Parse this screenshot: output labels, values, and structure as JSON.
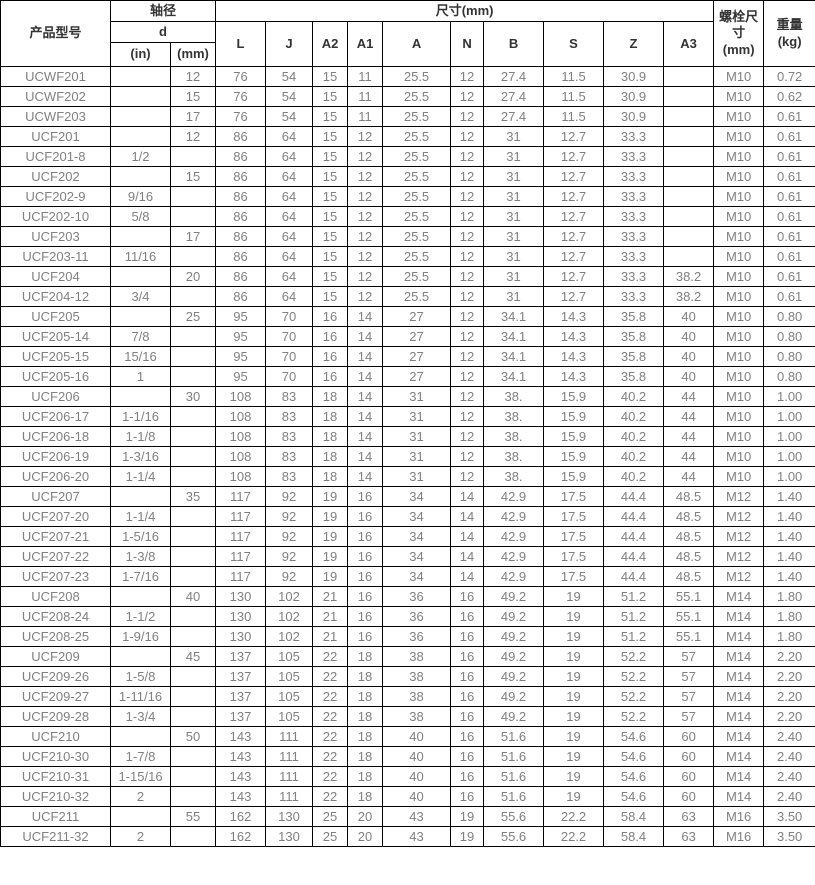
{
  "table": {
    "header": {
      "product_model": "产品型号",
      "shaft_diameter": "轴径",
      "d": "d",
      "unit_in": "(in)",
      "unit_mm": "(mm)",
      "size_mm": "尺寸(mm)",
      "dims": [
        "L",
        "J",
        "A2",
        "A1",
        "A",
        "N",
        "B",
        "S",
        "Z",
        "A3"
      ],
      "bolt_size": "螺栓尺寸 (mm)",
      "weight": "重量 (kg)"
    },
    "columns": [
      "model",
      "in",
      "mm",
      "L",
      "J",
      "A2",
      "A1",
      "A",
      "N",
      "B",
      "S",
      "Z",
      "A3",
      "bolt",
      "weight"
    ],
    "rows": [
      [
        "UCWF201",
        "",
        "12",
        "76",
        "54",
        "15",
        "11",
        "25.5",
        "12",
        "27.4",
        "11.5",
        "30.9",
        "",
        "M10",
        "0.72"
      ],
      [
        "UCWF202",
        "",
        "15",
        "76",
        "54",
        "15",
        "11",
        "25.5",
        "12",
        "27.4",
        "11.5",
        "30.9",
        "",
        "M10",
        "0.62"
      ],
      [
        "UCWF203",
        "",
        "17",
        "76",
        "54",
        "15",
        "11",
        "25.5",
        "12",
        "27.4",
        "11.5",
        "30.9",
        "",
        "M10",
        "0.61"
      ],
      [
        "UCF201",
        "",
        "12",
        "86",
        "64",
        "15",
        "12",
        "25.5",
        "12",
        "31",
        "12.7",
        "33.3",
        "",
        "M10",
        "0.61"
      ],
      [
        "UCF201-8",
        "1/2",
        "",
        "86",
        "64",
        "15",
        "12",
        "25.5",
        "12",
        "31",
        "12.7",
        "33.3",
        "",
        "M10",
        "0.61"
      ],
      [
        "UCF202",
        "",
        "15",
        "86",
        "64",
        "15",
        "12",
        "25.5",
        "12",
        "31",
        "12.7",
        "33.3",
        "",
        "M10",
        "0.61"
      ],
      [
        "UCF202-9",
        "9/16",
        "",
        "86",
        "64",
        "15",
        "12",
        "25.5",
        "12",
        "31",
        "12.7",
        "33.3",
        "",
        "M10",
        "0.61"
      ],
      [
        "UCF202-10",
        "5/8",
        "",
        "86",
        "64",
        "15",
        "12",
        "25.5",
        "12",
        "31",
        "12.7",
        "33.3",
        "",
        "M10",
        "0.61"
      ],
      [
        "UCF203",
        "",
        "17",
        "86",
        "64",
        "15",
        "12",
        "25.5",
        "12",
        "31",
        "12.7",
        "33.3",
        "",
        "M10",
        "0.61"
      ],
      [
        "UCF203-11",
        "11/16",
        "",
        "86",
        "64",
        "15",
        "12",
        "25.5",
        "12",
        "31",
        "12.7",
        "33.3",
        "",
        "M10",
        "0.61"
      ],
      [
        "UCF204",
        "",
        "20",
        "86",
        "64",
        "15",
        "12",
        "25.5",
        "12",
        "31",
        "12.7",
        "33.3",
        "38.2",
        "M10",
        "0.61"
      ],
      [
        "UCF204-12",
        "3/4",
        "",
        "86",
        "64",
        "15",
        "12",
        "25.5",
        "12",
        "31",
        "12.7",
        "33.3",
        "38.2",
        "M10",
        "0.61"
      ],
      [
        "UCF205",
        "",
        "25",
        "95",
        "70",
        "16",
        "14",
        "27",
        "12",
        "34.1",
        "14.3",
        "35.8",
        "40",
        "M10",
        "0.80"
      ],
      [
        "UCF205-14",
        "7/8",
        "",
        "95",
        "70",
        "16",
        "14",
        "27",
        "12",
        "34.1",
        "14.3",
        "35.8",
        "40",
        "M10",
        "0.80"
      ],
      [
        "UCF205-15",
        "15/16",
        "",
        "95",
        "70",
        "16",
        "14",
        "27",
        "12",
        "34.1",
        "14.3",
        "35.8",
        "40",
        "M10",
        "0.80"
      ],
      [
        "UCF205-16",
        "1",
        "",
        "95",
        "70",
        "16",
        "14",
        "27",
        "12",
        "34.1",
        "14.3",
        "35.8",
        "40",
        "M10",
        "0.80"
      ],
      [
        "UCF206",
        "",
        "30",
        "108",
        "83",
        "18",
        "14",
        "31",
        "12",
        "38.",
        "15.9",
        "40.2",
        "44",
        "M10",
        "1.00"
      ],
      [
        "UCF206-17",
        "1-1/16",
        "",
        "108",
        "83",
        "18",
        "14",
        "31",
        "12",
        "38.",
        "15.9",
        "40.2",
        "44",
        "M10",
        "1.00"
      ],
      [
        "UCF206-18",
        "1-1/8",
        "",
        "108",
        "83",
        "18",
        "14",
        "31",
        "12",
        "38.",
        "15.9",
        "40.2",
        "44",
        "M10",
        "1.00"
      ],
      [
        "UCF206-19",
        "1-3/16",
        "",
        "108",
        "83",
        "18",
        "14",
        "31",
        "12",
        "38.",
        "15.9",
        "40.2",
        "44",
        "M10",
        "1.00"
      ],
      [
        "UCF206-20",
        "1-1/4",
        "",
        "108",
        "83",
        "18",
        "14",
        "31",
        "12",
        "38.",
        "15.9",
        "40.2",
        "44",
        "M10",
        "1.00"
      ],
      [
        "UCF207",
        "",
        "35",
        "117",
        "92",
        "19",
        "16",
        "34",
        "14",
        "42.9",
        "17.5",
        "44.4",
        "48.5",
        "M12",
        "1.40"
      ],
      [
        "UCF207-20",
        "1-1/4",
        "",
        "117",
        "92",
        "19",
        "16",
        "34",
        "14",
        "42.9",
        "17.5",
        "44.4",
        "48.5",
        "M12",
        "1.40"
      ],
      [
        "UCF207-21",
        "1-5/16",
        "",
        "117",
        "92",
        "19",
        "16",
        "34",
        "14",
        "42.9",
        "17.5",
        "44.4",
        "48.5",
        "M12",
        "1.40"
      ],
      [
        "UCF207-22",
        "1-3/8",
        "",
        "117",
        "92",
        "19",
        "16",
        "34",
        "14",
        "42.9",
        "17.5",
        "44.4",
        "48.5",
        "M12",
        "1.40"
      ],
      [
        "UCF207-23",
        "1-7/16",
        "",
        "117",
        "92",
        "19",
        "16",
        "34",
        "14",
        "42.9",
        "17.5",
        "44.4",
        "48.5",
        "M12",
        "1.40"
      ],
      [
        "UCF208",
        "",
        "40",
        "130",
        "102",
        "21",
        "16",
        "36",
        "16",
        "49.2",
        "19",
        "51.2",
        "55.1",
        "M14",
        "1.80"
      ],
      [
        "UCF208-24",
        "1-1/2",
        "",
        "130",
        "102",
        "21",
        "16",
        "36",
        "16",
        "49.2",
        "19",
        "51.2",
        "55.1",
        "M14",
        "1.80"
      ],
      [
        "UCF208-25",
        "1-9/16",
        "",
        "130",
        "102",
        "21",
        "16",
        "36",
        "16",
        "49.2",
        "19",
        "51.2",
        "55.1",
        "M14",
        "1.80"
      ],
      [
        "UCF209",
        "",
        "45",
        "137",
        "105",
        "22",
        "18",
        "38",
        "16",
        "49.2",
        "19",
        "52.2",
        "57",
        "M14",
        "2.20"
      ],
      [
        "UCF209-26",
        "1-5/8",
        "",
        "137",
        "105",
        "22",
        "18",
        "38",
        "16",
        "49.2",
        "19",
        "52.2",
        "57",
        "M14",
        "2.20"
      ],
      [
        "UCF209-27",
        "1-11/16",
        "",
        "137",
        "105",
        "22",
        "18",
        "38",
        "16",
        "49.2",
        "19",
        "52.2",
        "57",
        "M14",
        "2.20"
      ],
      [
        "UCF209-28",
        "1-3/4",
        "",
        "137",
        "105",
        "22",
        "18",
        "38",
        "16",
        "49.2",
        "19",
        "52.2",
        "57",
        "M14",
        "2.20"
      ],
      [
        "UCF210",
        "",
        "50",
        "143",
        "111",
        "22",
        "18",
        "40",
        "16",
        "51.6",
        "19",
        "54.6",
        "60",
        "M14",
        "2.40"
      ],
      [
        "UCF210-30",
        "1-7/8",
        "",
        "143",
        "111",
        "22",
        "18",
        "40",
        "16",
        "51.6",
        "19",
        "54.6",
        "60",
        "M14",
        "2.40"
      ],
      [
        "UCF210-31",
        "1-15/16",
        "",
        "143",
        "111",
        "22",
        "18",
        "40",
        "16",
        "51.6",
        "19",
        "54.6",
        "60",
        "M14",
        "2.40"
      ],
      [
        "UCF210-32",
        "2",
        "",
        "143",
        "111",
        "22",
        "18",
        "40",
        "16",
        "51.6",
        "19",
        "54.6",
        "60",
        "M14",
        "2.40"
      ],
      [
        "UCF211",
        "",
        "55",
        "162",
        "130",
        "25",
        "20",
        "43",
        "19",
        "55.6",
        "22.2",
        "58.4",
        "63",
        "M16",
        "3.50"
      ],
      [
        "UCF211-32",
        "2",
        "",
        "162",
        "130",
        "25",
        "20",
        "43",
        "19",
        "55.6",
        "22.2",
        "58.4",
        "63",
        "M16",
        "3.50"
      ]
    ]
  }
}
